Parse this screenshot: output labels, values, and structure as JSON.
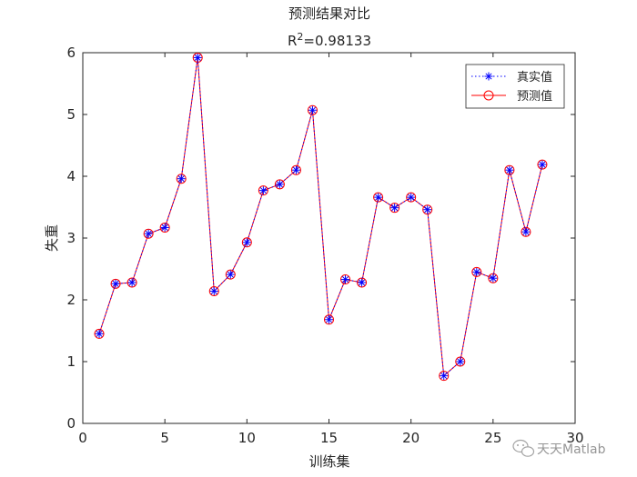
{
  "chart_data": {
    "type": "line",
    "title": "预测结果对比",
    "subtitle_prefix": "R",
    "subtitle_sup": "2",
    "subtitle_value": "=0.98133",
    "xlabel": "训练集",
    "ylabel": "失重",
    "xlim": [
      0,
      30
    ],
    "ylim": [
      0,
      6
    ],
    "xticks": [
      0,
      5,
      10,
      15,
      20,
      25,
      30
    ],
    "yticks": [
      0,
      1,
      2,
      3,
      4,
      5,
      6
    ],
    "grid": false,
    "legend_position": "top-right",
    "x": [
      1,
      2,
      3,
      4,
      5,
      6,
      7,
      8,
      9,
      10,
      11,
      12,
      13,
      14,
      15,
      16,
      17,
      18,
      19,
      20,
      21,
      22,
      23,
      24,
      25,
      26,
      27,
      28
    ],
    "series": [
      {
        "name": "真实值",
        "marker": "asterisk",
        "line_style": "dotted",
        "color": "#0000ff",
        "values": [
          1.45,
          2.26,
          2.28,
          3.07,
          3.17,
          3.96,
          5.92,
          2.14,
          2.41,
          2.93,
          3.77,
          3.87,
          4.1,
          5.07,
          1.68,
          2.33,
          2.28,
          3.66,
          3.49,
          3.66,
          3.46,
          0.77,
          1.0,
          2.45,
          2.35,
          4.1,
          3.1,
          4.19
        ]
      },
      {
        "name": "预测值",
        "marker": "circle",
        "line_style": "solid",
        "color": "#ff0000",
        "values": [
          1.45,
          2.26,
          2.28,
          3.07,
          3.17,
          3.96,
          5.92,
          2.14,
          2.41,
          2.93,
          3.77,
          3.87,
          4.1,
          5.07,
          1.68,
          2.33,
          2.28,
          3.66,
          3.49,
          3.66,
          3.46,
          0.77,
          1.0,
          2.45,
          2.35,
          4.1,
          3.1,
          4.19
        ]
      }
    ]
  },
  "watermark": {
    "text": "天天Matlab",
    "icon": "wechat-icon"
  }
}
